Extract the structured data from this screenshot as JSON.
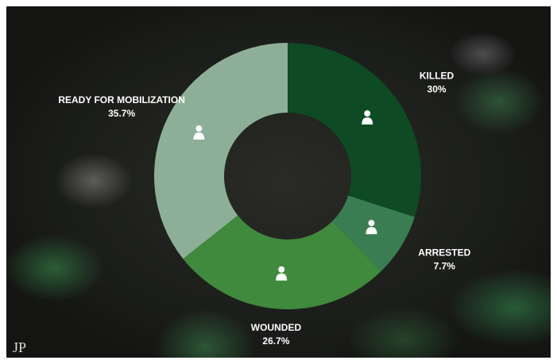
{
  "chart_data": {
    "type": "pie",
    "categories": [
      "KILLED",
      "ARRESTED",
      "WOUNDED",
      "READY FOR MOBILIZATION"
    ],
    "values": [
      30,
      7.7,
      26.7,
      35.7
    ],
    "value_labels": [
      "30%",
      "7.7%",
      "26.7%",
      "35.7%"
    ],
    "colors": [
      "#0e4a24",
      "#3a7d52",
      "#3f8a3c",
      "#8daf97"
    ],
    "donut": true
  },
  "logo": "JP"
}
